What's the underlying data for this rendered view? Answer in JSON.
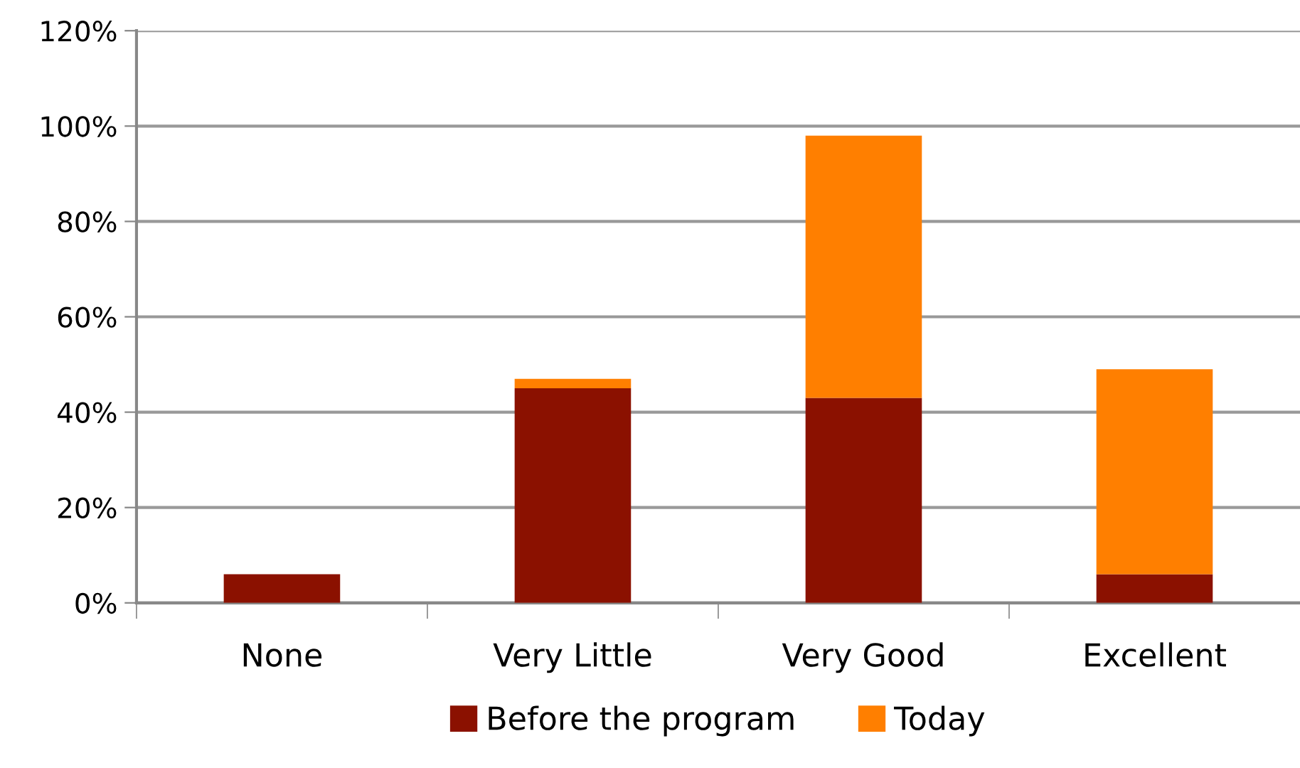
{
  "chart_data": {
    "type": "bar",
    "stacked": true,
    "categories": [
      "None",
      "Very Little",
      "Very Good",
      "Excellent"
    ],
    "series": [
      {
        "name": "Before the program",
        "color": "#8b1100",
        "values": [
          6,
          45,
          43,
          6
        ]
      },
      {
        "name": "Today",
        "color": "#ff7f00",
        "values": [
          0,
          2,
          55,
          43
        ]
      }
    ],
    "ylim": [
      0,
      120
    ],
    "yticks": [
      {
        "value": 0,
        "label": "0%"
      },
      {
        "value": 20,
        "label": "20%"
      },
      {
        "value": 40,
        "label": "40%"
      },
      {
        "value": 60,
        "label": "60%"
      },
      {
        "value": 80,
        "label": "80%"
      },
      {
        "value": 100,
        "label": "100%"
      },
      {
        "value": 120,
        "label": "120%"
      }
    ],
    "grid": "y",
    "legend": "bottom"
  }
}
